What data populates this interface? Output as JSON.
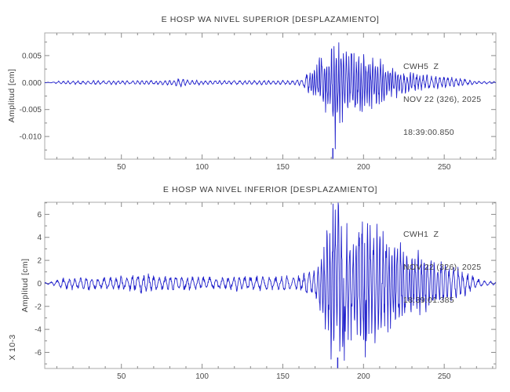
{
  "colors": {
    "background": "#ffffff",
    "trace": "#2323cc",
    "frame": "#a9a9a9",
    "tick": "#8a8a8a",
    "tick_text": "#4a4a4a",
    "title_text": "#383838",
    "annotation_text": "#464646",
    "pick_marker": "#2323cc"
  },
  "chart_data": [
    {
      "type": "line",
      "title": "E HOSP WA NIVEL SUPERIOR [DESPLAZAMIENTO]",
      "ylabel": "Amplitud [cm]",
      "exponent_label": "",
      "annotation": {
        "station": "CWH5  Z",
        "date": "NOV 22 (326), 2025",
        "time": "18:39:00.850"
      },
      "xlim": [
        2.5,
        282
      ],
      "ylim": [
        -0.0142,
        0.0092
      ],
      "xticks": [
        50,
        100,
        150,
        200,
        250
      ],
      "xtick_minor_step": 10,
      "yticks": [
        0.005,
        0,
        -0.005,
        -0.01
      ],
      "ytick_labels": [
        "0.005",
        "0.000",
        "-0.005",
        "-0.010"
      ],
      "ytick_minor_step": 0.0025,
      "grid": false,
      "legend": "none",
      "pick_marker_x": 181,
      "signal": {
        "seed": 11,
        "dx": 0.2,
        "period_noise": 3.2,
        "period_burst": 1.5,
        "burst_threshold": 0.003,
        "envelope": [
          [
            2.5,
            4e-05
          ],
          [
            7,
            8e-05
          ],
          [
            12,
            0.00035
          ],
          [
            30,
            0.0004
          ],
          [
            55,
            0.00038
          ],
          [
            80,
            0.00045
          ],
          [
            87,
            0.0008
          ],
          [
            93,
            0.00045
          ],
          [
            115,
            0.0004
          ],
          [
            140,
            0.00042
          ],
          [
            158,
            0.00048
          ],
          [
            163,
            0.0009
          ],
          [
            168,
            0.0028
          ],
          [
            173,
            0.0045
          ],
          [
            178,
            0.006
          ],
          [
            184,
            0.0072
          ],
          [
            190,
            0.006
          ],
          [
            197,
            0.0067
          ],
          [
            203,
            0.0052
          ],
          [
            210,
            0.004
          ],
          [
            218,
            0.0028
          ],
          [
            228,
            0.002
          ],
          [
            240,
            0.0014
          ],
          [
            252,
            0.0011
          ],
          [
            262,
            0.0007
          ],
          [
            269,
            0.0003
          ],
          [
            282,
            0.00022
          ]
        ],
        "spikes": [
          [
            182.5,
            -0.0123
          ]
        ]
      }
    },
    {
      "type": "line",
      "title": "E HOSP WA NIVEL INFERIOR [DESPLAZAMIENTO]",
      "ylabel": "Amplitud [cm]",
      "exponent_label": "X 10-3",
      "annotation": {
        "station": "CWH1  Z",
        "date": "NOV 22 (326), 2025",
        "time": "18:39:01.385"
      },
      "xlim": [
        2.5,
        282
      ],
      "ylim": [
        -7.4,
        7.05
      ],
      "xticks": [
        50,
        100,
        150,
        200,
        250
      ],
      "xtick_minor_step": 10,
      "yticks": [
        6,
        4,
        2,
        0,
        -2,
        -4,
        -6
      ],
      "ytick_labels": [
        "6",
        "4",
        "2",
        "0",
        "-2",
        "-4",
        "-6"
      ],
      "ytick_minor_step": 1,
      "grid": false,
      "legend": "none",
      "pick_marker_x": 184,
      "signal": {
        "seed": 23,
        "dx": 0.2,
        "period_noise": 4.0,
        "period_burst": 1.8,
        "burst_threshold": 3,
        "envelope": [
          [
            2.5,
            0.08
          ],
          [
            7,
            0.15
          ],
          [
            14,
            0.5
          ],
          [
            30,
            0.6
          ],
          [
            45,
            0.55
          ],
          [
            58,
            0.75
          ],
          [
            64,
            0.95
          ],
          [
            72,
            0.6
          ],
          [
            88,
            0.7
          ],
          [
            105,
            0.55
          ],
          [
            125,
            0.65
          ],
          [
            145,
            0.6
          ],
          [
            158,
            0.65
          ],
          [
            164,
            0.9
          ],
          [
            170,
            1.6
          ],
          [
            175,
            3.2
          ],
          [
            180,
            6.3
          ],
          [
            186,
            6.8
          ],
          [
            192,
            5.0
          ],
          [
            199,
            6.1
          ],
          [
            206,
            5.7
          ],
          [
            213,
            4.3
          ],
          [
            222,
            3.7
          ],
          [
            232,
            3.0
          ],
          [
            242,
            2.4
          ],
          [
            252,
            2.0
          ],
          [
            262,
            1.1
          ],
          [
            270,
            0.45
          ],
          [
            276,
            0.2
          ],
          [
            282,
            0.15
          ]
        ],
        "spikes": [
          [
            181,
            6.9
          ],
          [
            188,
            -6.7
          ],
          [
            201,
            -6.4
          ]
        ]
      }
    }
  ]
}
